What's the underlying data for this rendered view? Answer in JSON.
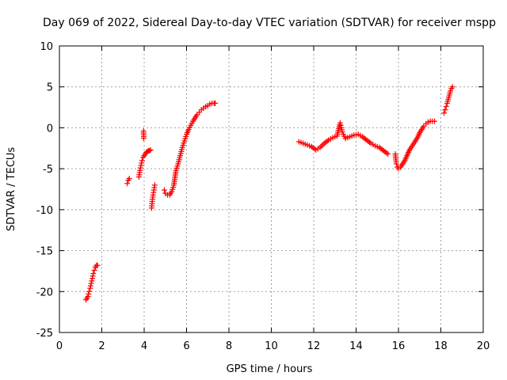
{
  "chart_data": {
    "type": "scatter",
    "title": "Day 069 of 2022, Sidereal Day-to-day VTEC variation (SDTVAR) for receiver mspp",
    "xlabel": "GPS time / hours",
    "ylabel": "SDTVAR / TECUs",
    "xlim": [
      0,
      20
    ],
    "ylim": [
      -25,
      10
    ],
    "xticks": [
      0,
      2,
      4,
      6,
      8,
      10,
      12,
      14,
      16,
      18,
      20
    ],
    "yticks": [
      -25,
      -20,
      -15,
      -10,
      -5,
      0,
      5,
      10
    ],
    "grid": true,
    "marker": "+",
    "color": "#ff0000",
    "series": [
      {
        "name": "SDTVAR",
        "x": [
          1.25,
          1.3,
          1.35,
          1.4,
          1.45,
          1.5,
          1.55,
          1.6,
          1.65,
          1.7,
          1.75,
          1.8,
          3.2,
          3.25,
          3.3,
          3.75,
          3.8,
          3.85,
          3.9,
          3.95,
          4.0,
          4.05,
          4.1,
          4.15,
          4.2,
          4.25,
          4.3,
          3.97,
          3.98,
          4.35,
          4.38,
          4.42,
          4.46,
          4.5,
          4.95,
          5.0,
          5.1,
          5.2,
          5.3,
          5.4,
          5.5,
          5.6,
          5.7,
          5.8,
          5.9,
          6.0,
          6.1,
          6.2,
          6.3,
          6.4,
          6.5,
          6.6,
          6.7,
          6.8,
          6.9,
          7.0,
          7.1,
          7.2,
          7.3,
          7.35,
          11.3,
          11.5,
          11.7,
          11.9,
          12.1,
          12.3,
          12.5,
          12.7,
          12.9,
          13.1,
          13.25,
          13.3,
          13.35,
          13.4,
          13.5,
          13.7,
          13.9,
          14.1,
          14.3,
          14.5,
          14.7,
          14.9,
          15.1,
          15.3,
          15.5,
          15.85,
          15.9,
          15.95,
          16.0,
          16.1,
          16.2,
          16.3,
          16.4,
          16.5,
          16.6,
          16.7,
          16.8,
          16.9,
          17.0,
          17.1,
          17.2,
          17.3,
          17.4,
          17.5,
          17.6,
          17.7,
          18.15,
          18.2,
          18.25,
          18.3,
          18.35,
          18.4,
          18.45,
          18.5,
          18.55
        ],
        "y": [
          -21.0,
          -20.8,
          -20.6,
          -20.0,
          -19.6,
          -19.0,
          -18.4,
          -17.8,
          -17.4,
          -17.0,
          -16.8,
          -16.8,
          -6.8,
          -6.4,
          -6.2,
          -6.0,
          -5.2,
          -4.6,
          -4.0,
          -3.6,
          -3.4,
          -3.2,
          -3.0,
          -2.9,
          -2.8,
          -2.8,
          -2.7,
          -0.4,
          -1.3,
          -9.8,
          -9.0,
          -8.2,
          -7.6,
          -7.0,
          -7.6,
          -8.0,
          -8.2,
          -8.2,
          -7.8,
          -7.0,
          -5.2,
          -4.4,
          -3.4,
          -2.4,
          -1.6,
          -0.8,
          -0.2,
          0.3,
          0.8,
          1.2,
          1.6,
          1.9,
          2.2,
          2.4,
          2.6,
          2.7,
          2.9,
          3.0,
          3.0,
          3.0,
          -1.7,
          -1.9,
          -2.1,
          -2.3,
          -2.7,
          -2.4,
          -1.9,
          -1.5,
          -1.2,
          -1.0,
          0.6,
          0.0,
          -0.5,
          -0.8,
          -1.3,
          -1.1,
          -0.9,
          -0.8,
          -1.1,
          -1.5,
          -1.9,
          -2.2,
          -2.4,
          -2.8,
          -3.2,
          -3.2,
          -4.4,
          -4.8,
          -5.0,
          -4.8,
          -4.4,
          -4.0,
          -3.4,
          -2.8,
          -2.4,
          -2.0,
          -1.6,
          -1.2,
          -0.6,
          -0.2,
          0.2,
          0.5,
          0.7,
          0.8,
          0.8,
          0.8,
          1.8,
          2.2,
          2.6,
          3.0,
          3.5,
          4.0,
          4.5,
          4.8,
          5.0
        ]
      }
    ]
  }
}
